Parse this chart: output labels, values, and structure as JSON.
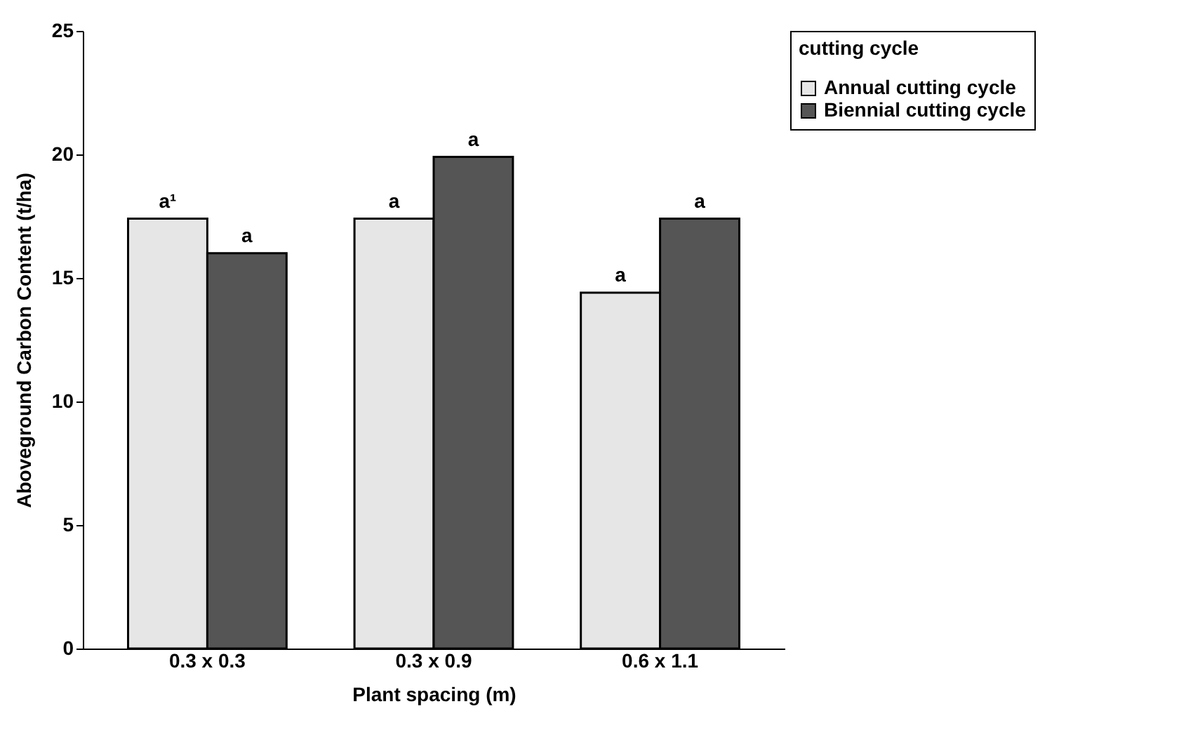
{
  "chart_data": {
    "type": "bar",
    "xlabel": "Plant spacing (m)",
    "ylabel": "Aboveground Carbon Content (t/ha)",
    "legend_title": "cutting cycle",
    "categories": [
      "0.3 x 0.3",
      "0.3 x 0.9",
      "0.6 x 1.1"
    ],
    "series": [
      {
        "name": "Annual cutting cycle",
        "color": "#e6e6e6",
        "values": [
          17.4,
          17.4,
          14.4
        ],
        "value_labels": [
          "a¹",
          "a",
          "a"
        ]
      },
      {
        "name": "Biennial cutting cycle",
        "color": "#555555",
        "values": [
          16.0,
          19.9,
          17.4
        ],
        "value_labels": [
          "a",
          "a",
          "a"
        ]
      }
    ],
    "ylim": [
      0,
      25
    ],
    "yticks": [
      0,
      5,
      10,
      15,
      20,
      25
    ],
    "legend": "right"
  }
}
